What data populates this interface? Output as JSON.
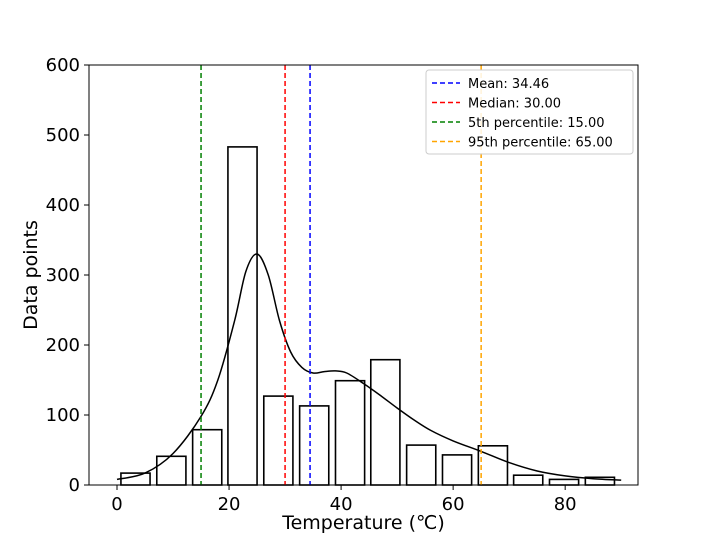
{
  "chart_data": {
    "type": "bar",
    "title": "",
    "xlabel": "Temperature (℃)",
    "ylabel": "Data points",
    "xlim": [
      -5,
      93
    ],
    "ylim": [
      0,
      600
    ],
    "xticks": [
      0,
      20,
      40,
      60,
      80
    ],
    "yticks": [
      0,
      100,
      200,
      300,
      400,
      500,
      600
    ],
    "bar_width": 5.2,
    "bars": [
      {
        "x": 3.3,
        "value": 17
      },
      {
        "x": 9.7,
        "value": 41
      },
      {
        "x": 16.1,
        "value": 79
      },
      {
        "x": 22.4,
        "value": 483
      },
      {
        "x": 28.8,
        "value": 127
      },
      {
        "x": 35.2,
        "value": 113
      },
      {
        "x": 41.6,
        "value": 149
      },
      {
        "x": 47.9,
        "value": 179
      },
      {
        "x": 54.3,
        "value": 57
      },
      {
        "x": 60.7,
        "value": 43
      },
      {
        "x": 67.1,
        "value": 56
      },
      {
        "x": 73.4,
        "value": 14
      },
      {
        "x": 79.8,
        "value": 8
      },
      {
        "x": 86.2,
        "value": 11
      }
    ],
    "kde": {
      "x": [
        0,
        5,
        10,
        15,
        18,
        21,
        23,
        25,
        27,
        29,
        31,
        33,
        35,
        37,
        39,
        41,
        44,
        47,
        50,
        53,
        56,
        60,
        65,
        70,
        75,
        80,
        85,
        90
      ],
      "y": [
        8,
        17,
        45,
        98,
        150,
        235,
        305,
        330,
        300,
        235,
        190,
        168,
        160,
        162,
        163,
        160,
        145,
        128,
        110,
        93,
        78,
        63,
        48,
        32,
        20,
        13,
        9,
        7
      ]
    },
    "vlines": [
      {
        "label": "Mean: 34.46",
        "x": 34.46,
        "color": "#0000ff"
      },
      {
        "label": "Median: 30.00",
        "x": 30.0,
        "color": "#ff0000"
      },
      {
        "label": "5th percentile: 15.00",
        "x": 15.0,
        "color": "#008000"
      },
      {
        "label": "95th percentile: 65.00",
        "x": 65.0,
        "color": "#ffa500"
      }
    ],
    "legend_position": "top-right"
  }
}
